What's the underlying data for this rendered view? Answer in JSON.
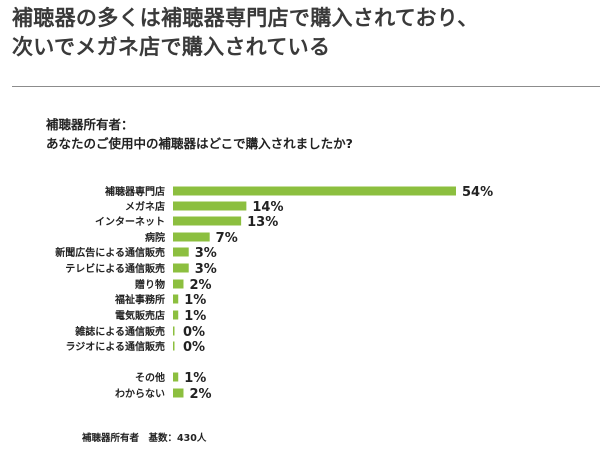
{
  "headline": {
    "line1": "補聴器の多くは補聴器専門店で購入されており、",
    "line2": "次いでメガネ店で購入されている"
  },
  "question": {
    "line1": "補聴器所有者：",
    "line2": "あなたのご使用中の補聴器はどこで購入されましたか?"
  },
  "footnote": "補聴器所有者　基数：430人",
  "colors": {
    "bar": "#8cbf3f"
  },
  "chart_data": {
    "type": "bar",
    "orientation": "horizontal",
    "categories": [
      "補聴器専門店",
      "メガネ店",
      "インターネット",
      "病院",
      "新聞広告による通信販売",
      "テレビによる通信販売",
      "贈り物",
      "福祉事務所",
      "電気販売店",
      "雑誌による通信販売",
      "ラジオによる通信販売",
      "その他",
      "わからない"
    ],
    "values": [
      54,
      14,
      13,
      7,
      3,
      3,
      2,
      1,
      1,
      0,
      0,
      1,
      2
    ],
    "value_labels": [
      "54%",
      "14%",
      "13%",
      "7%",
      "3%",
      "3%",
      "2%",
      "1%",
      "1%",
      "0%",
      "0%",
      "1%",
      "2%"
    ],
    "xlim": [
      0,
      54
    ],
    "grid": false,
    "legend": "none"
  }
}
